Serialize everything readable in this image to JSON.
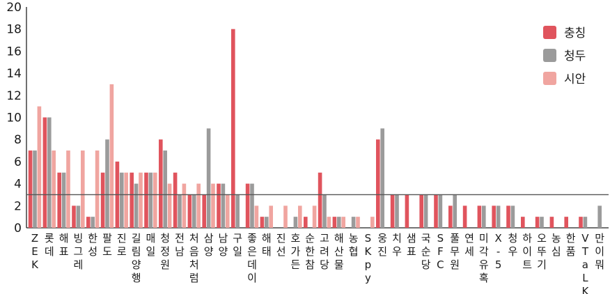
{
  "chart_data": {
    "type": "bar",
    "ylim": [
      0,
      20
    ],
    "yticks": [
      0,
      2,
      4,
      6,
      8,
      10,
      12,
      14,
      16,
      18,
      20
    ],
    "reference_line": 3,
    "legend_position": "top-right",
    "grid": false,
    "categories": [
      "ZEK",
      "롯데",
      "해표",
      "빙그레",
      "한성",
      "팔도",
      "진로",
      "길림양행",
      "매일",
      "청정원",
      "전남",
      "처음처럼",
      "삼양",
      "남양",
      "구일",
      "좋은데이",
      "해태",
      "진선",
      "호가든",
      "순한참",
      "고려당",
      "해산물",
      "농협",
      "SKpy",
      "웅진",
      "치우",
      "샘표",
      "국순당",
      "SFC",
      "풀무원",
      "연세",
      "미각유혹",
      "X-5",
      "청우",
      "하이트",
      "오뚜기",
      "농심",
      "한품",
      "VTaLK",
      "만이뭐"
    ],
    "series": [
      {
        "name": "충칭",
        "color": "#e0545d",
        "values": [
          7,
          10,
          5,
          2,
          1,
          5,
          6,
          5,
          5,
          8,
          5,
          3,
          3,
          4,
          18,
          4,
          1,
          0,
          0,
          1,
          5,
          1,
          0,
          0,
          8,
          3,
          3,
          3,
          3,
          2,
          2,
          2,
          2,
          2,
          1,
          1,
          1,
          1,
          1,
          0
        ]
      },
      {
        "name": "청두",
        "color": "#9b9b9b",
        "values": [
          7,
          10,
          5,
          2,
          1,
          8,
          5,
          4,
          5,
          7,
          3,
          3,
          9,
          4,
          3,
          4,
          1,
          0,
          1,
          0,
          3,
          1,
          1,
          0,
          9,
          3,
          0,
          3,
          3,
          3,
          0,
          2,
          2,
          2,
          0,
          1,
          0,
          0,
          1,
          2
        ]
      },
      {
        "name": "시안",
        "color": "#f0a5a0",
        "values": [
          11,
          7,
          7,
          7,
          7,
          13,
          5,
          5,
          5,
          4,
          4,
          4,
          4,
          3,
          0,
          2,
          2,
          2,
          2,
          2,
          1,
          1,
          1,
          1,
          0,
          0,
          0,
          0,
          0,
          0,
          0,
          0,
          0,
          0,
          0,
          0,
          0,
          0,
          0,
          0
        ]
      }
    ]
  }
}
